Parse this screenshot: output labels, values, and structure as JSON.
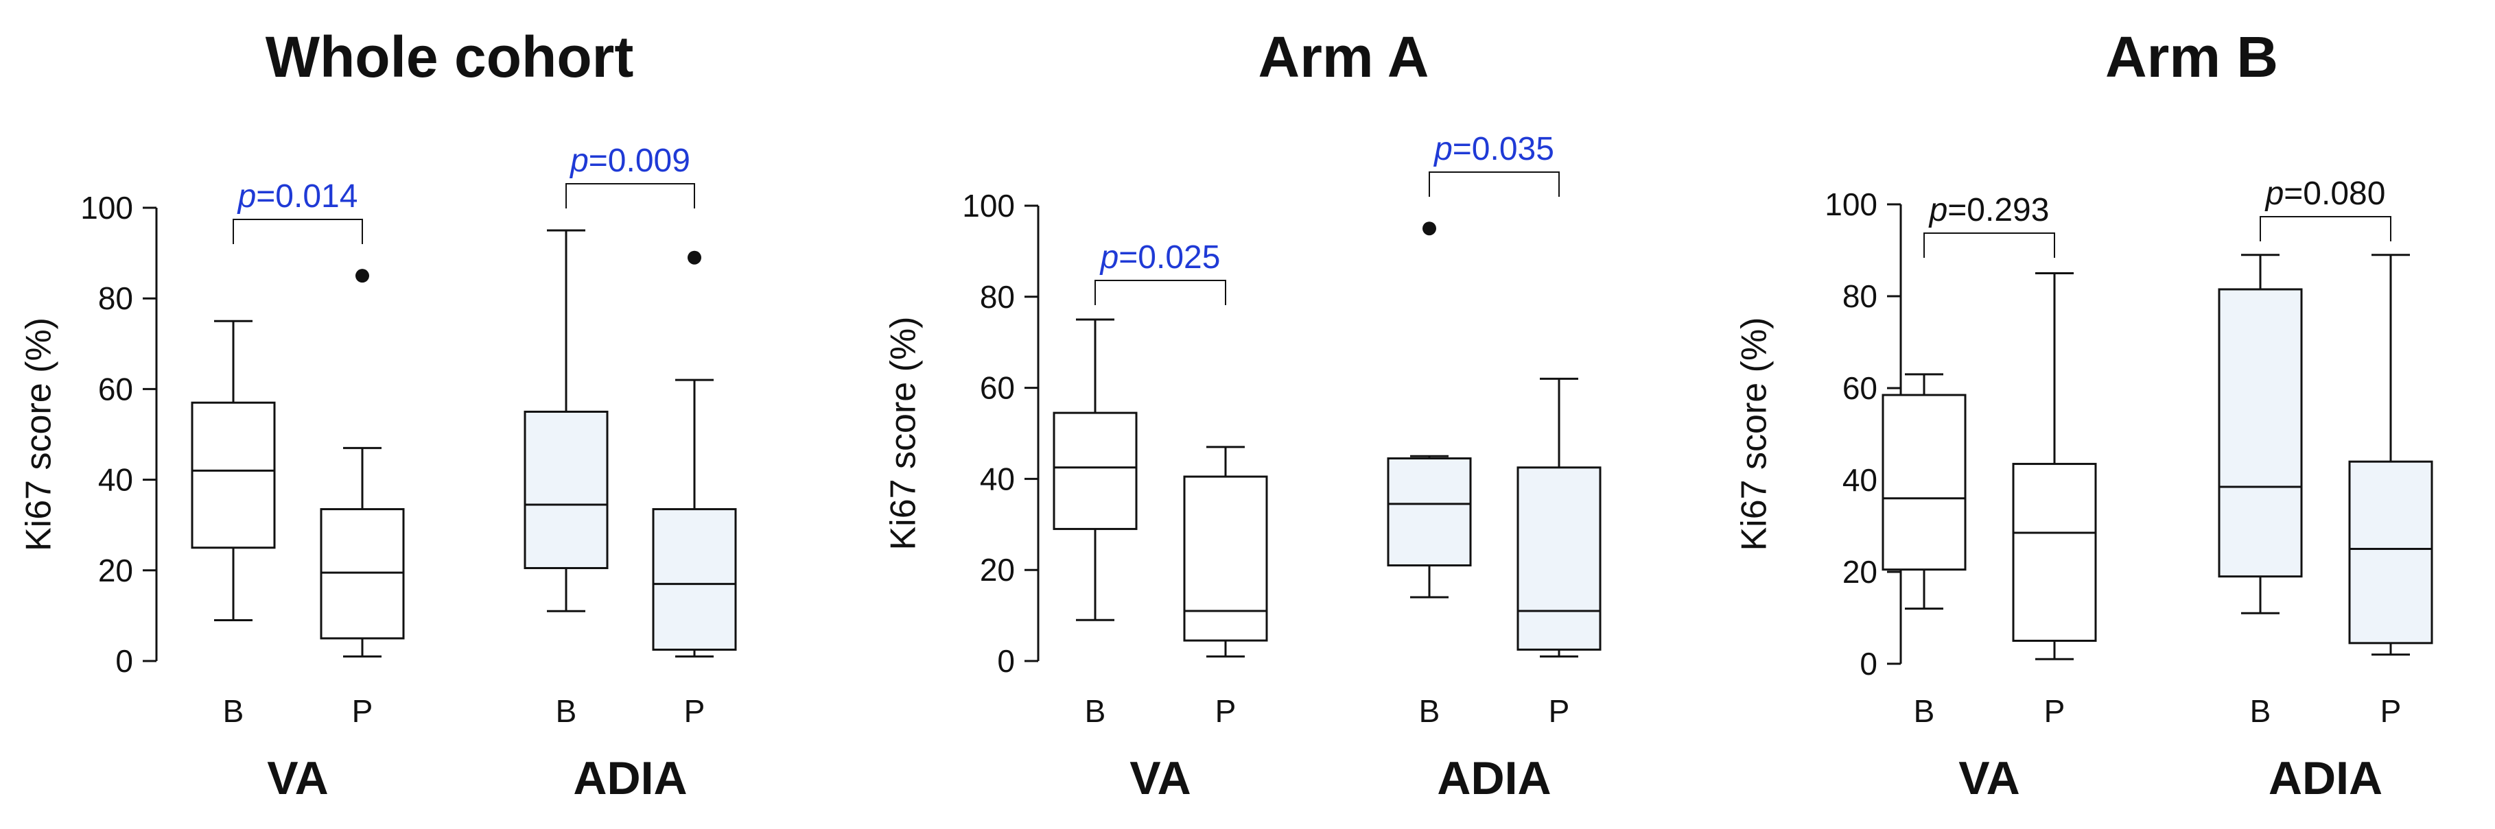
{
  "figure": {
    "colors": {
      "axis": "#111111",
      "sig": "#1f3ad6",
      "nonsig": "#111111",
      "light_fill": "#eef4fa",
      "white_fill": "#ffffff"
    }
  },
  "chart_data": [
    {
      "type": "boxplot",
      "title": "Whole cohort",
      "ylabel": "Ki67 score (%)",
      "ylim": [
        0,
        100
      ],
      "yticks": [
        0,
        20,
        40,
        60,
        80,
        100
      ],
      "groups": [
        {
          "name": "VA",
          "fill": "white",
          "p_value": {
            "prefix": "p",
            "text": "=0.014",
            "significant": true
          },
          "boxes": [
            {
              "label": "B",
              "min": 9,
              "q1": 25,
              "median": 42,
              "q3": 57,
              "max": 75,
              "outliers": []
            },
            {
              "label": "P",
              "min": 1,
              "q1": 5,
              "median": 19.5,
              "q3": 33.5,
              "max": 47,
              "outliers": [
                85
              ]
            }
          ]
        },
        {
          "name": "ADIA",
          "fill": "light",
          "p_value": {
            "prefix": "p",
            "text": "=0.009",
            "significant": true
          },
          "boxes": [
            {
              "label": "B",
              "min": 11,
              "q1": 20.5,
              "median": 34.5,
              "q3": 55,
              "max": 95,
              "outliers": []
            },
            {
              "label": "P",
              "min": 1,
              "q1": 2.5,
              "median": 17,
              "q3": 33.5,
              "max": 62,
              "outliers": [
                89
              ]
            }
          ]
        }
      ]
    },
    {
      "type": "boxplot",
      "title": "Arm A",
      "ylabel": "Ki67 score (%)",
      "ylim": [
        0,
        100
      ],
      "yticks": [
        0,
        20,
        40,
        60,
        80,
        100
      ],
      "groups": [
        {
          "name": "VA",
          "fill": "white",
          "p_value": {
            "prefix": "p",
            "text": "=0.025",
            "significant": true
          },
          "boxes": [
            {
              "label": "B",
              "min": 9,
              "q1": 29,
              "median": 42.5,
              "q3": 54.5,
              "max": 75,
              "outliers": []
            },
            {
              "label": "P",
              "min": 1,
              "q1": 4.5,
              "median": 11,
              "q3": 40.5,
              "max": 47,
              "outliers": []
            }
          ]
        },
        {
          "name": "ADIA",
          "fill": "light",
          "p_value": {
            "prefix": "p",
            "text": "=0.035",
            "significant": true
          },
          "boxes": [
            {
              "label": "B",
              "min": 14,
              "q1": 21,
              "median": 34.5,
              "q3": 44.5,
              "max": 45,
              "outliers": [
                95
              ]
            },
            {
              "label": "P",
              "min": 1,
              "q1": 2.5,
              "median": 11,
              "q3": 42.5,
              "max": 62,
              "outliers": []
            }
          ]
        }
      ]
    },
    {
      "type": "boxplot",
      "title": "Arm B",
      "ylabel": "Ki67 score (%)",
      "ylim": [
        0,
        100
      ],
      "yticks": [
        0,
        20,
        40,
        60,
        80,
        100
      ],
      "groups": [
        {
          "name": "VA",
          "fill": "white",
          "p_value": {
            "prefix": "p",
            "text": "=0.293",
            "significant": false
          },
          "boxes": [
            {
              "label": "B",
              "min": 12,
              "q1": 20.5,
              "median": 36,
              "q3": 58.5,
              "max": 63,
              "outliers": []
            },
            {
              "label": "P",
              "min": 1,
              "q1": 5,
              "median": 28.5,
              "q3": 43.5,
              "max": 85,
              "outliers": []
            }
          ]
        },
        {
          "name": "ADIA",
          "fill": "light",
          "p_value": {
            "prefix": "p",
            "text": "=0.080",
            "significant": false
          },
          "boxes": [
            {
              "label": "B",
              "min": 11,
              "q1": 19,
              "median": 38.5,
              "q3": 81.5,
              "max": 89,
              "outliers": []
            },
            {
              "label": "P",
              "min": 2,
              "q1": 4.5,
              "median": 25,
              "q3": 44,
              "max": 89,
              "outliers": []
            }
          ]
        }
      ]
    }
  ]
}
